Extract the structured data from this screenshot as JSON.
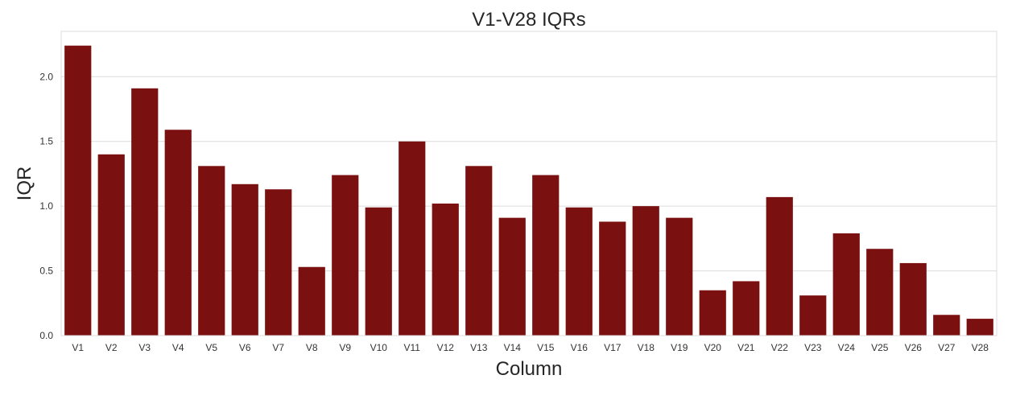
{
  "chart_data": {
    "type": "bar",
    "title": "V1-V28 IQRs",
    "xlabel": "Column",
    "ylabel": "IQR",
    "categories": [
      "V1",
      "V2",
      "V3",
      "V4",
      "V5",
      "V6",
      "V7",
      "V8",
      "V9",
      "V10",
      "V11",
      "V12",
      "V13",
      "V14",
      "V15",
      "V16",
      "V17",
      "V18",
      "V19",
      "V20",
      "V21",
      "V22",
      "V23",
      "V24",
      "V25",
      "V26",
      "V27",
      "V28"
    ],
    "values": [
      2.24,
      1.4,
      1.91,
      1.59,
      1.31,
      1.17,
      1.13,
      0.53,
      1.24,
      0.99,
      1.5,
      1.02,
      1.31,
      0.91,
      1.24,
      0.99,
      0.88,
      1.0,
      0.91,
      0.35,
      0.42,
      1.07,
      0.31,
      0.79,
      0.67,
      0.56,
      0.16,
      0.13
    ],
    "yticks": [
      0.0,
      0.5,
      1.0,
      1.5,
      2.0
    ],
    "ytick_labels": [
      "0.0",
      "0.5",
      "1.0",
      "1.5",
      "2.0"
    ],
    "ylim": [
      0,
      2.35
    ],
    "grid": "y-major",
    "legend": "none",
    "bar_color": "#7b1010",
    "grid_color": "#dcdcdc"
  }
}
